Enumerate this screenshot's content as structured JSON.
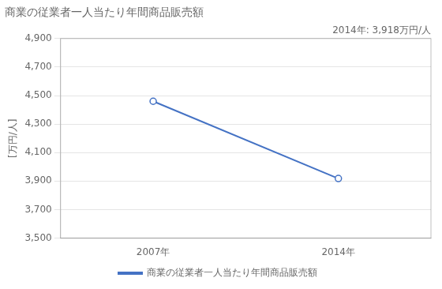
{
  "chart_data": {
    "type": "line",
    "title": "商業の従業者一人当たり年間商品販売額",
    "y_label": "[万円/人]",
    "annotation": "2014年: 3,918万円/人",
    "x": [
      2007,
      2014
    ],
    "series": [
      {
        "name": "商業の従業者一人当たり年間商品販売額",
        "color": "#4472C4",
        "values": [
          4460,
          3918
        ],
        "marker": "circle"
      }
    ],
    "xlim": [
      2003.5,
      2017.5
    ],
    "xticks": [
      {
        "value": 2007,
        "label": "2007年"
      },
      {
        "value": 2014,
        "label": "2014年"
      }
    ],
    "ylim": [
      3500,
      4900
    ],
    "yticks": [
      {
        "value": 3500,
        "label": "3,500"
      },
      {
        "value": 3700,
        "label": "3,700"
      },
      {
        "value": 3900,
        "label": "3,900"
      },
      {
        "value": 4100,
        "label": "4,100"
      },
      {
        "value": 4300,
        "label": "4,300"
      },
      {
        "value": 4500,
        "label": "4,500"
      },
      {
        "value": 4700,
        "label": "4,700"
      },
      {
        "value": 4900,
        "label": "4,900"
      }
    ],
    "grid": "y",
    "legend": "bottom"
  }
}
